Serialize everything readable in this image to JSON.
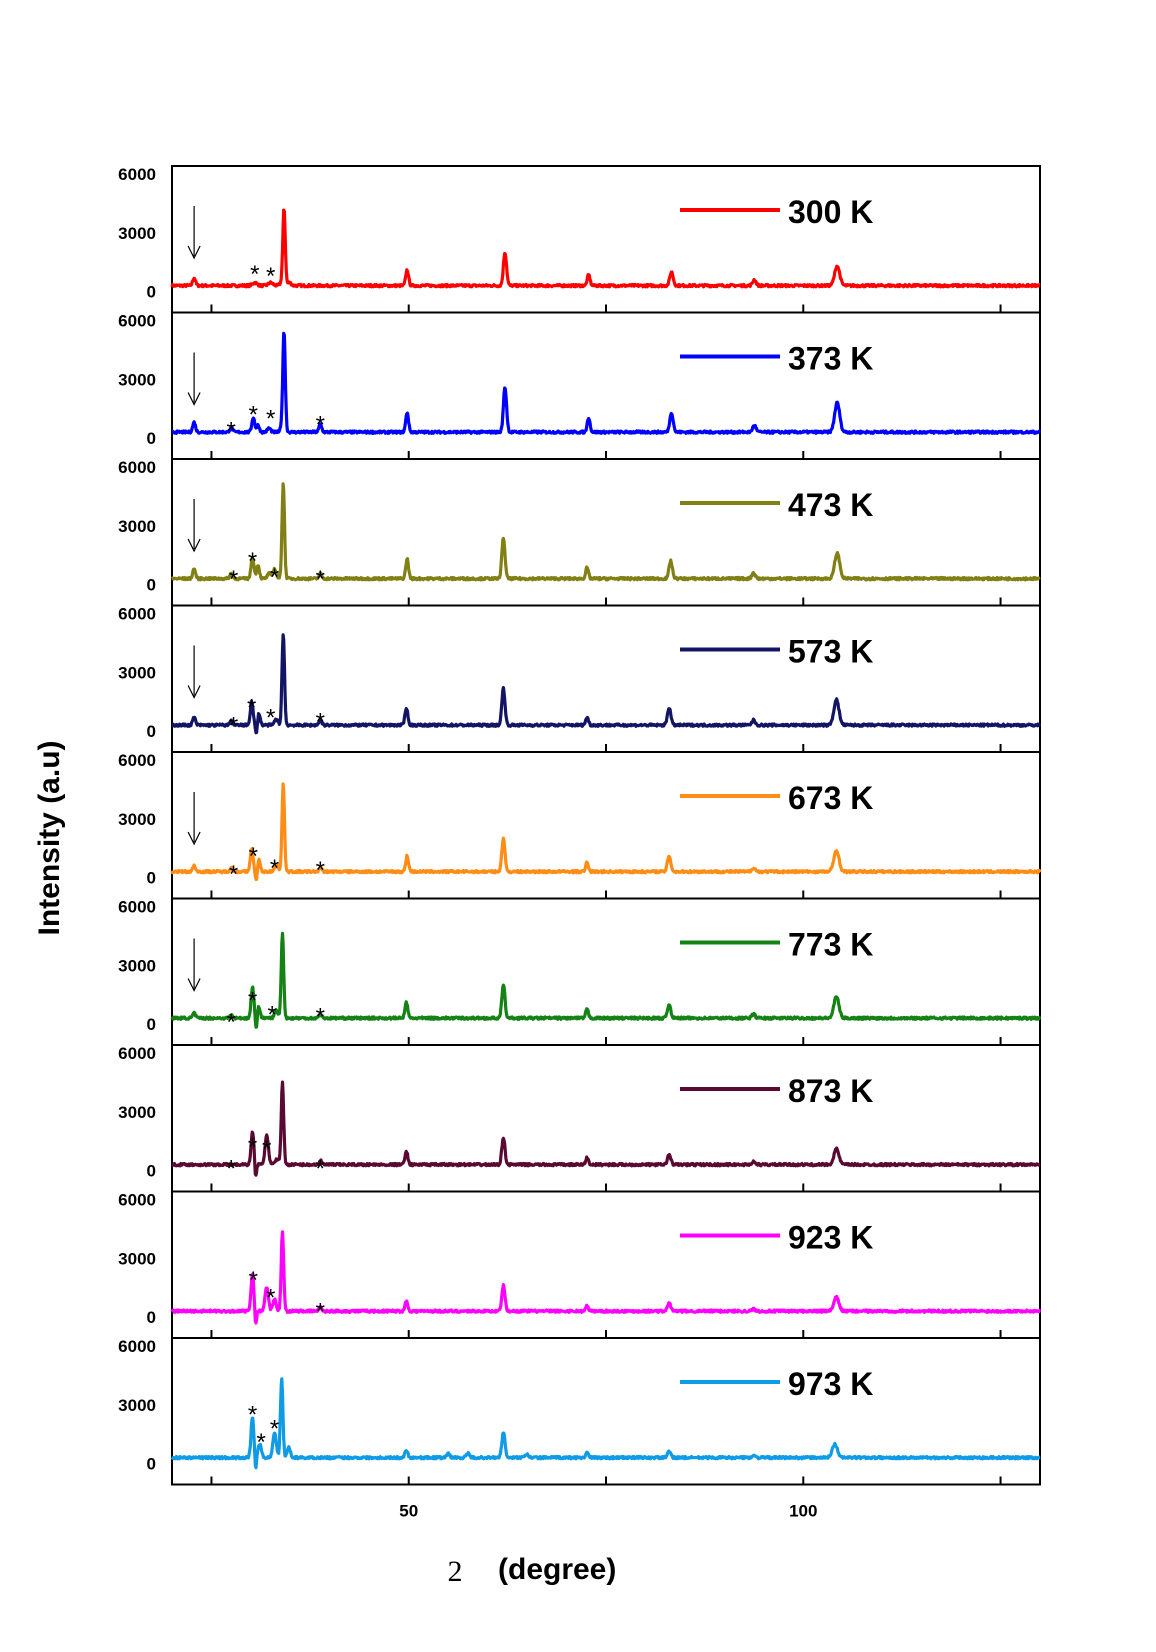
{
  "chart_data": {
    "type": "line",
    "layout": "stacked-panels",
    "xlabel": "(degree)",
    "xlabel_prefix": "2",
    "ylabel": "Intensity (a.u)",
    "xlim": [
      20,
      130
    ],
    "xticks": [
      50,
      100
    ],
    "ylim": [
      0,
      6000
    ],
    "yticks": [
      0,
      3000,
      6000
    ],
    "baseline": 300,
    "noise": 60,
    "main_peak_shape": [
      [
        -0.3,
        0.35
      ],
      [
        0,
        1.0
      ],
      [
        0.3,
        0.35
      ]
    ],
    "panels": [
      {
        "name": "300 K",
        "color": "#ff0000",
        "peaks": [
          [
            34.2,
            3800,
            0.22
          ],
          [
            62.2,
            1700,
            0.28
          ],
          [
            49.8,
            800,
            0.25
          ],
          [
            72.8,
            550,
            0.25
          ],
          [
            83.3,
            700,
            0.3
          ],
          [
            104.3,
            1000,
            0.45
          ],
          [
            93.8,
            300,
            0.3
          ],
          [
            34.9,
            150,
            0.3
          ],
          [
            30.5,
            150,
            0.4
          ],
          [
            32.5,
            150,
            0.4
          ],
          [
            34.0,
            150,
            0.4
          ],
          [
            22.8,
            400,
            0.25
          ],
          [
            43.0,
            0,
            0.3
          ],
          [
            47.5,
            0,
            0.3
          ]
        ],
        "marks": {
          "arrow": 22.8,
          "stars": [
            {
              "x": 30.5,
              "y": 1300
            },
            {
              "x": 32.5,
              "y": 1200
            }
          ]
        }
      },
      {
        "name": "373 K",
        "color": "#0000ff",
        "peaks": [
          [
            34.2,
            5000,
            0.22
          ],
          [
            62.2,
            2300,
            0.28
          ],
          [
            49.8,
            1000,
            0.25
          ],
          [
            72.8,
            750,
            0.25
          ],
          [
            83.3,
            1000,
            0.3
          ],
          [
            104.3,
            1500,
            0.45
          ],
          [
            93.8,
            350,
            0.3
          ],
          [
            30.3,
            750,
            0.25
          ],
          [
            30.9,
            350,
            0.25
          ],
          [
            32.3,
            200,
            0.3
          ],
          [
            34.0,
            300,
            0.3
          ],
          [
            22.8,
            500,
            0.25
          ],
          [
            27.5,
            250,
            0.25
          ],
          [
            38.8,
            400,
            0.25
          ]
        ],
        "marks": {
          "arrow": 22.8,
          "stars": [
            {
              "x": 27.5,
              "y": 800
            },
            {
              "x": 30.3,
              "y": 1600
            },
            {
              "x": 32.5,
              "y": 1400
            },
            {
              "x": 38.8,
              "y": 1100
            }
          ]
        }
      },
      {
        "name": "473 K",
        "color": "#808014",
        "peaks": [
          [
            34.1,
            4900,
            0.22
          ],
          [
            62.0,
            2100,
            0.28
          ],
          [
            49.8,
            1000,
            0.25
          ],
          [
            72.6,
            550,
            0.25
          ],
          [
            83.2,
            900,
            0.3
          ],
          [
            104.3,
            1300,
            0.45
          ],
          [
            93.7,
            300,
            0.3
          ],
          [
            30.2,
            1100,
            0.25
          ],
          [
            30.9,
            700,
            0.25
          ],
          [
            32.3,
            250,
            0.3
          ],
          [
            33.0,
            500,
            0.3
          ],
          [
            22.8,
            500,
            0.25
          ],
          [
            27.5,
            250,
            0.25
          ],
          [
            38.8,
            250,
            0.25
          ]
        ],
        "marks": {
          "arrow": 22.8,
          "stars": [
            {
              "x": 27.8,
              "y": 700
            },
            {
              "x": 30.2,
              "y": 1600
            },
            {
              "x": 33.0,
              "y": 800
            },
            {
              "x": 38.8,
              "y": 700
            }
          ]
        }
      },
      {
        "name": "573 K",
        "color": "#141464",
        "peaks": [
          [
            34.1,
            4700,
            0.22
          ],
          [
            62.0,
            1900,
            0.28
          ],
          [
            49.7,
            900,
            0.25
          ],
          [
            72.6,
            400,
            0.25
          ],
          [
            83.0,
            900,
            0.3
          ],
          [
            104.2,
            1300,
            0.45
          ],
          [
            93.7,
            250,
            0.3
          ],
          [
            30.1,
            1200,
            0.25
          ],
          [
            30.7,
            -600,
            0.15
          ],
          [
            31.0,
            600,
            0.25
          ],
          [
            33.2,
            300,
            0.3
          ],
          [
            22.8,
            400,
            0.25
          ],
          [
            27.5,
            200,
            0.25
          ],
          [
            38.8,
            300,
            0.25
          ]
        ],
        "marks": {
          "arrow": 22.8,
          "stars": [
            {
              "x": 27.8,
              "y": 700
            },
            {
              "x": 30.1,
              "y": 1600
            },
            {
              "x": 32.5,
              "y": 1100
            },
            {
              "x": 38.8,
              "y": 900
            }
          ]
        }
      },
      {
        "name": "673 K",
        "color": "#ff8c14",
        "peaks": [
          [
            34.1,
            4500,
            0.22
          ],
          [
            62.0,
            1700,
            0.28
          ],
          [
            49.8,
            800,
            0.25
          ],
          [
            72.6,
            450,
            0.25
          ],
          [
            83.0,
            800,
            0.3
          ],
          [
            104.2,
            1100,
            0.45
          ],
          [
            93.7,
            200,
            0.3
          ],
          [
            30.1,
            1200,
            0.25
          ],
          [
            30.7,
            -600,
            0.15
          ],
          [
            31.0,
            600,
            0.25
          ],
          [
            33.2,
            400,
            0.3
          ],
          [
            22.8,
            300,
            0.25
          ],
          [
            27.5,
            200,
            0.25
          ],
          [
            38.8,
            200,
            0.25
          ]
        ],
        "marks": {
          "arrow": 22.8,
          "stars": [
            {
              "x": 27.8,
              "y": 600
            },
            {
              "x": 30.3,
              "y": 1500
            },
            {
              "x": 33.0,
              "y": 900
            },
            {
              "x": 38.8,
              "y": 800
            }
          ]
        }
      },
      {
        "name": "773 K",
        "color": "#148214",
        "peaks": [
          [
            34.0,
            4300,
            0.22
          ],
          [
            62.0,
            1700,
            0.28
          ],
          [
            49.7,
            800,
            0.25
          ],
          [
            72.6,
            450,
            0.25
          ],
          [
            83.0,
            700,
            0.3
          ],
          [
            104.2,
            1100,
            0.45
          ],
          [
            93.7,
            200,
            0.3
          ],
          [
            30.2,
            1600,
            0.25
          ],
          [
            30.7,
            -700,
            0.15
          ],
          [
            31.0,
            600,
            0.25
          ],
          [
            33.2,
            400,
            0.3
          ],
          [
            22.8,
            250,
            0.25
          ],
          [
            27.5,
            150,
            0.25
          ],
          [
            38.8,
            200,
            0.25
          ]
        ],
        "marks": {
          "arrow": 22.8,
          "stars": [
            {
              "x": 27.5,
              "y": 500
            },
            {
              "x": 30.2,
              "y": 1600
            },
            {
              "x": 32.7,
              "y": 900
            },
            {
              "x": 38.8,
              "y": 800
            }
          ]
        }
      },
      {
        "name": "873 K",
        "color": "#5a0a32",
        "peaks": [
          [
            34.0,
            4200,
            0.22
          ],
          [
            62.0,
            1400,
            0.28
          ],
          [
            49.7,
            700,
            0.25
          ],
          [
            72.6,
            350,
            0.25
          ],
          [
            83.0,
            500,
            0.3
          ],
          [
            104.2,
            800,
            0.45
          ],
          [
            93.7,
            150,
            0.3
          ],
          [
            30.2,
            1700,
            0.25
          ],
          [
            30.6,
            -700,
            0.15
          ],
          [
            32.0,
            1500,
            0.3
          ],
          [
            33.3,
            300,
            0.3
          ],
          [
            38.8,
            200,
            0.25
          ]
        ],
        "marks": {
          "stars": [
            {
              "x": 27.5,
              "y": 500
            },
            {
              "x": 30.2,
              "y": 1600
            },
            {
              "x": 32.0,
              "y": 1500
            },
            {
              "x": 38.8,
              "y": 500
            }
          ]
        }
      },
      {
        "name": "923 K",
        "color": "#ff00ff",
        "peaks": [
          [
            34.0,
            4000,
            0.22
          ],
          [
            62.0,
            1300,
            0.28
          ],
          [
            49.7,
            500,
            0.25
          ],
          [
            72.6,
            250,
            0.25
          ],
          [
            83.0,
            400,
            0.3
          ],
          [
            104.2,
            700,
            0.45
          ],
          [
            93.7,
            100,
            0.3
          ],
          [
            30.2,
            1900,
            0.25
          ],
          [
            30.6,
            -800,
            0.15
          ],
          [
            32.0,
            1200,
            0.3
          ],
          [
            33.0,
            600,
            0.3
          ],
          [
            38.8,
            200,
            0.25
          ]
        ],
        "marks": {
          "stars": [
            {
              "x": 30.3,
              "y": 2300
            },
            {
              "x": 32.5,
              "y": 1400
            },
            {
              "x": 38.8,
              "y": 700
            }
          ]
        }
      },
      {
        "name": "973 K",
        "color": "#0f9be6",
        "peaks": [
          [
            33.9,
            4000,
            0.22
          ],
          [
            62.0,
            1300,
            0.28
          ],
          [
            49.7,
            400,
            0.25
          ],
          [
            72.6,
            250,
            0.25
          ],
          [
            83.0,
            300,
            0.3
          ],
          [
            104.0,
            700,
            0.45
          ],
          [
            93.7,
            100,
            0.3
          ],
          [
            30.2,
            2100,
            0.25
          ],
          [
            30.6,
            -700,
            0.15
          ],
          [
            31.1,
            700,
            0.3
          ],
          [
            33.0,
            1300,
            0.3
          ],
          [
            34.8,
            500,
            0.3
          ],
          [
            55.0,
            200,
            0.3
          ],
          [
            57.5,
            200,
            0.3
          ],
          [
            65.0,
            150,
            0.3
          ]
        ],
        "marks": {
          "stars": [
            {
              "x": 30.2,
              "y": 2900
            },
            {
              "x": 31.3,
              "y": 1500
            },
            {
              "x": 33.0,
              "y": 2200
            }
          ]
        }
      }
    ]
  }
}
